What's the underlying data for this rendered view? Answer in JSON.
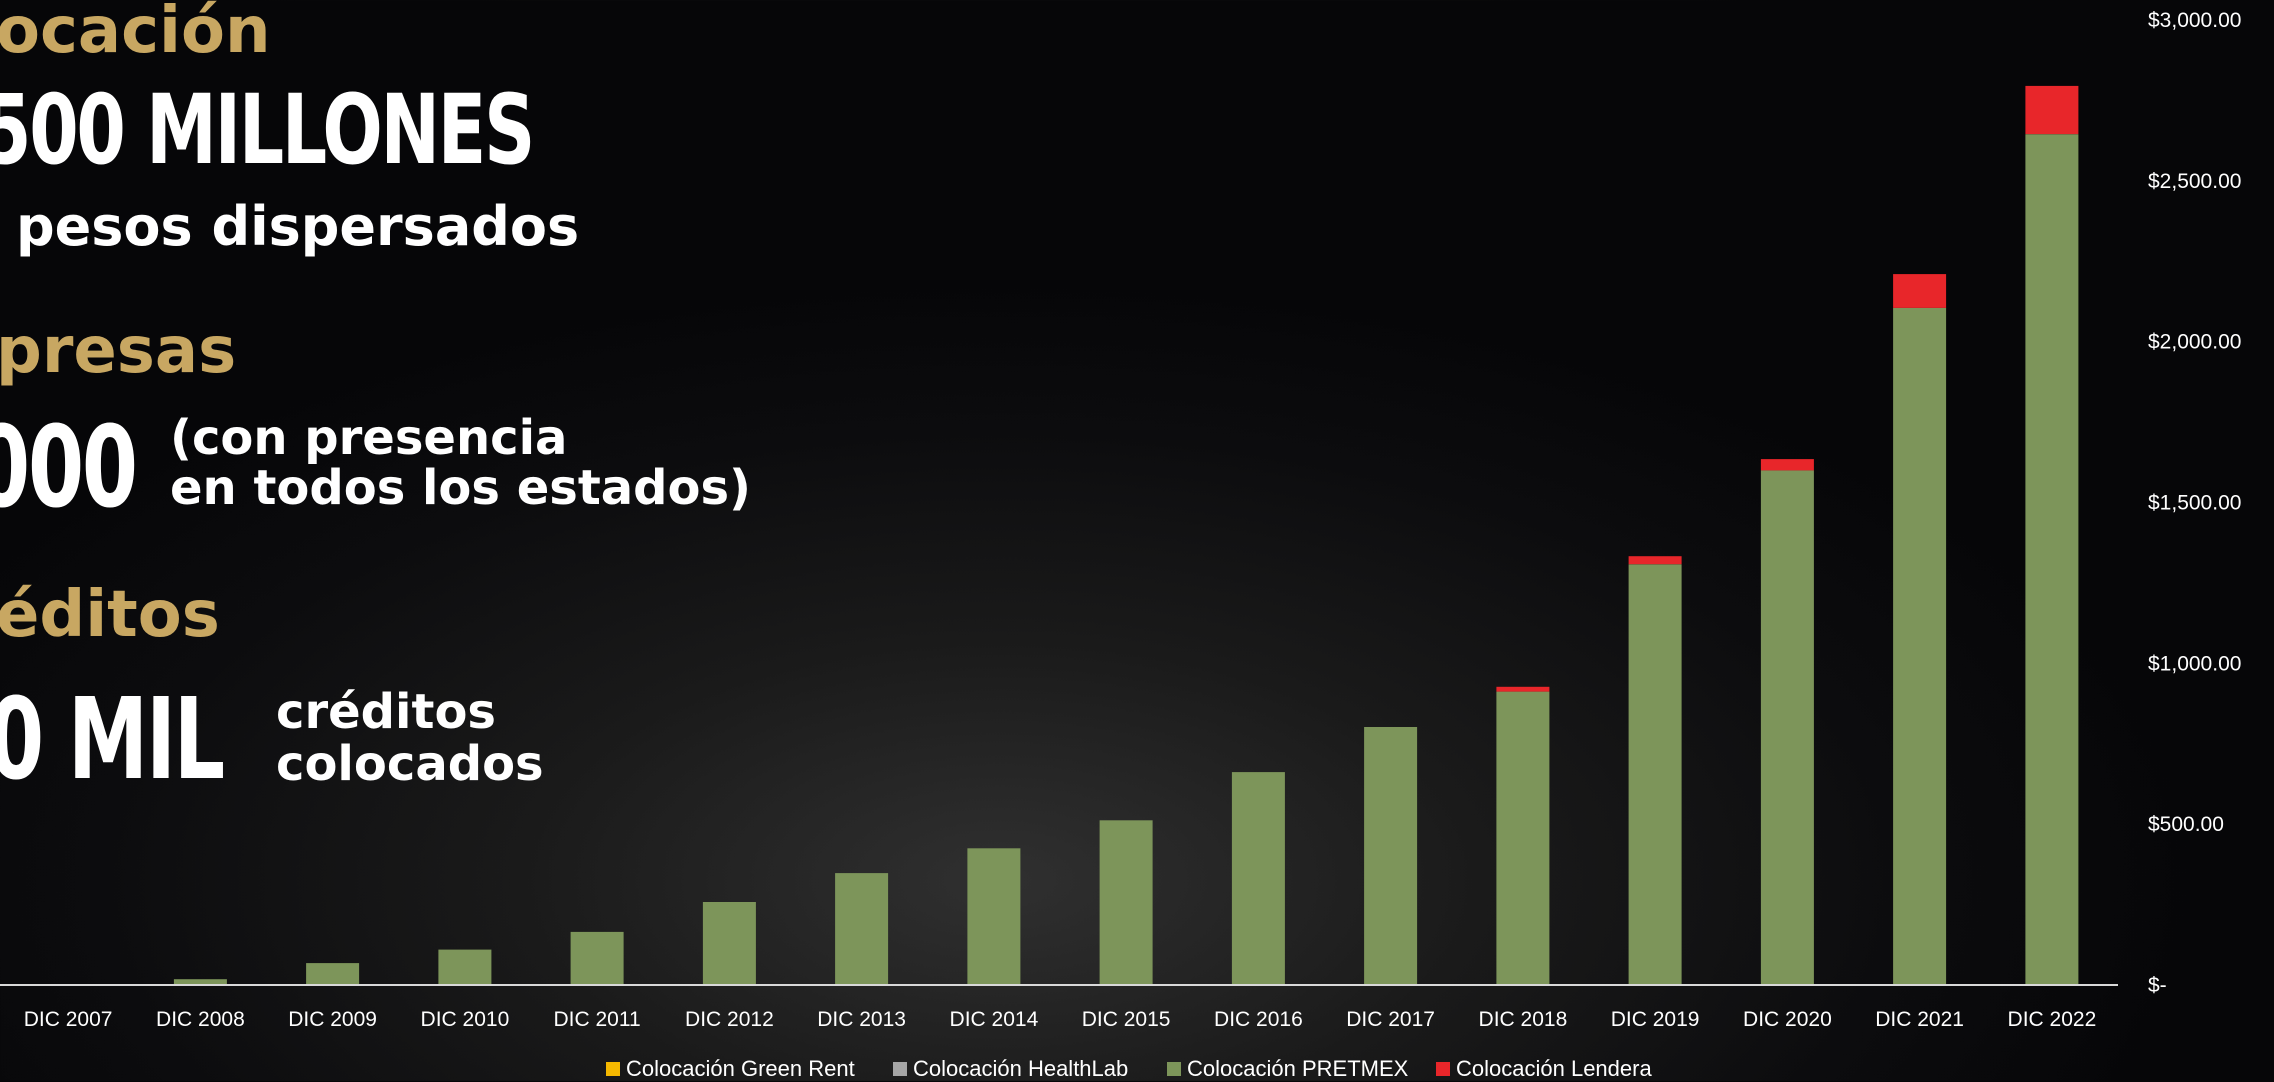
{
  "headline": {
    "colocacion_title": "ocación",
    "amount_big": "500 MILLONES",
    "amount_sub": "pesos dispersados",
    "empresas_title": "presas",
    "empresas_big": "000",
    "empresas_sub_1": "(con presencia",
    "empresas_sub_2": "en todos los estados)",
    "creditos_title": "éditos",
    "creditos_big": "0 MIL",
    "creditos_sub_1": "créditos",
    "creditos_sub_2": "colocados"
  },
  "colors": {
    "gold": "#c8a762",
    "green_rent": "#f5b800",
    "healthlab": "#a6a6a6",
    "pretmex": "#7d955a",
    "lendera": "#e8262a"
  },
  "chart_data": {
    "type": "bar",
    "stacked": true,
    "categories": [
      "DIC 2007",
      "DIC 2008",
      "DIC 2009",
      "DIC 2010",
      "DIC 2011",
      "DIC 2012",
      "DIC 2013",
      "DIC 2014",
      "DIC 2015",
      "DIC 2016",
      "DIC 2017",
      "DIC 2018",
      "DIC 2019",
      "DIC 2020",
      "DIC 2021",
      "DIC 2022"
    ],
    "series": [
      {
        "name": "Colocación Green Rent",
        "color": "#f5b800",
        "values": [
          0,
          0,
          0,
          0,
          0,
          0,
          0,
          0,
          0,
          0,
          0,
          0,
          0,
          0,
          0,
          0
        ]
      },
      {
        "name": "Colocación HealthLab",
        "color": "#a6a6a6",
        "values": [
          0,
          0,
          0,
          0,
          0,
          0,
          0,
          0,
          0,
          0,
          0,
          0,
          0,
          0,
          0,
          0
        ]
      },
      {
        "name": "Colocación PRETMEX",
        "color": "#7d955a",
        "values": [
          2,
          18,
          68,
          110,
          165,
          258,
          348,
          425,
          512,
          662,
          802,
          912,
          1308,
          1600,
          2105,
          2645
        ]
      },
      {
        "name": "Colocación Lendera",
        "color": "#e8262a",
        "values": [
          0,
          0,
          0,
          0,
          0,
          0,
          0,
          0,
          0,
          0,
          0,
          15,
          25,
          35,
          105,
          150
        ]
      }
    ],
    "y_ticks": [
      "$-",
      "$500.00",
      "$1,000.00",
      "$1,500.00",
      "$2,000.00",
      "$2,500.00",
      "$3,000.00"
    ],
    "ylim": [
      0,
      3000
    ],
    "y_axis_side": "right",
    "legend_position": "bottom",
    "grid": false
  }
}
